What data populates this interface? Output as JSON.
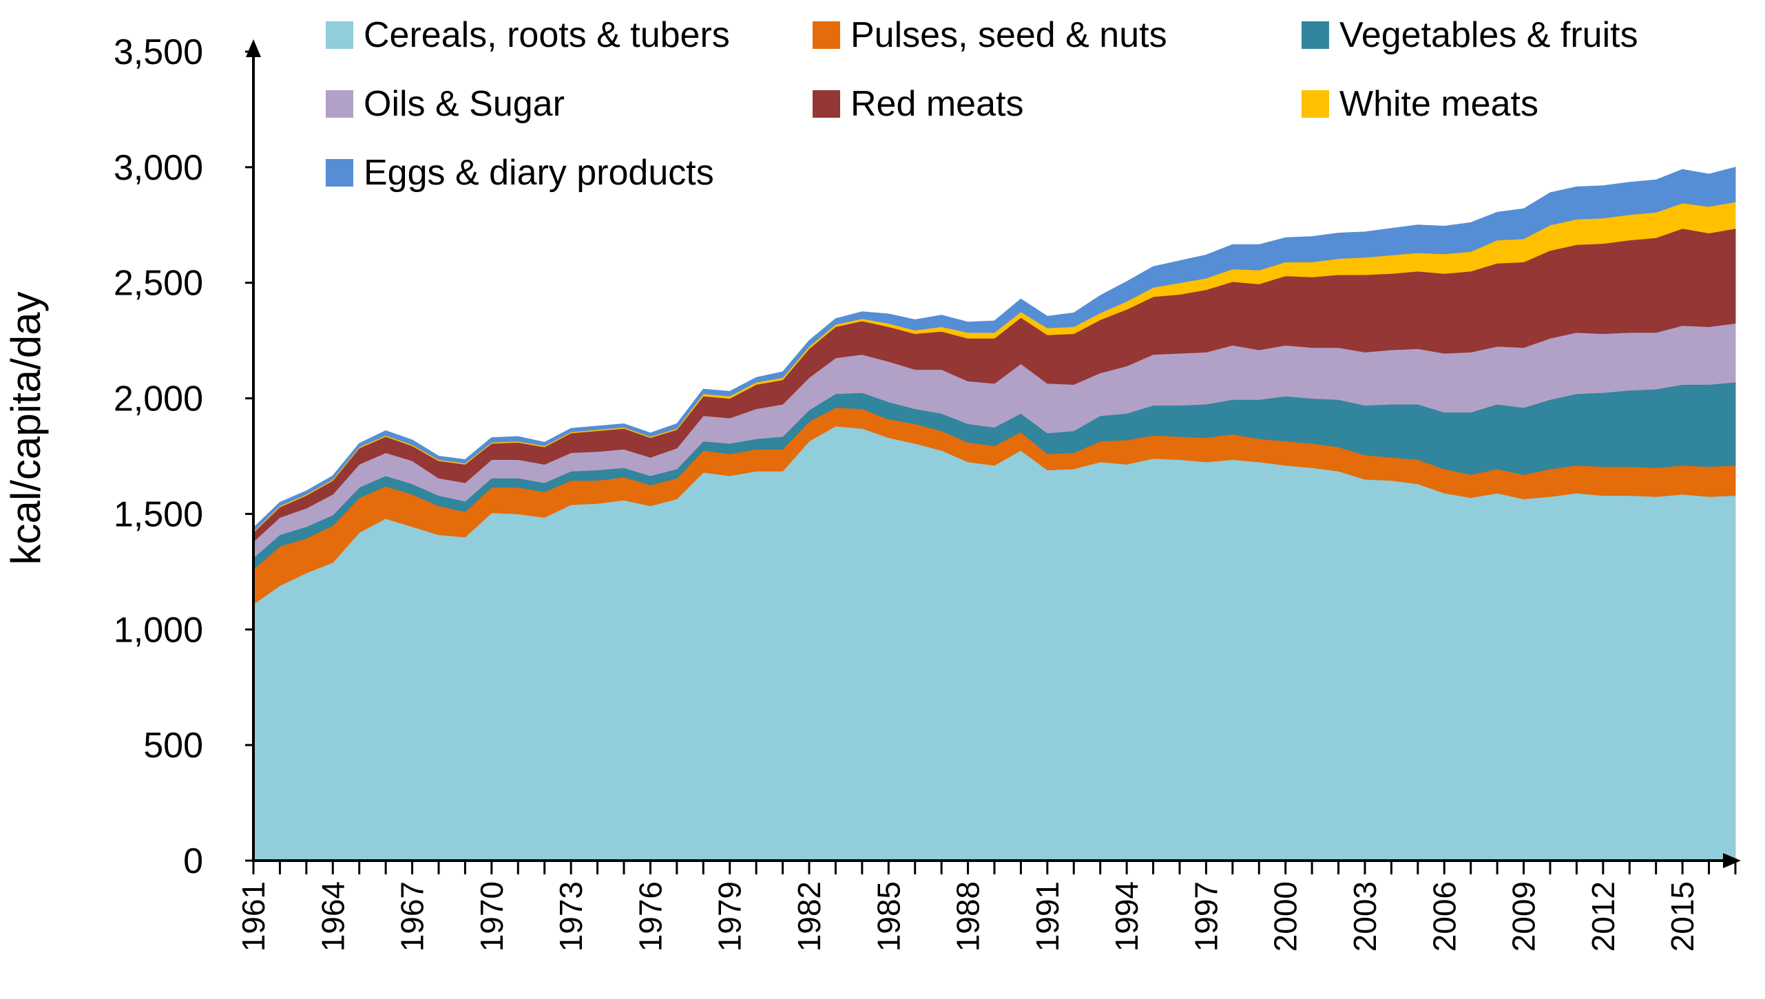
{
  "chart_data": {
    "type": "area",
    "stacked": true,
    "title": "",
    "xlabel": "",
    "ylabel": "kcal/capita/day",
    "ylim": [
      0,
      3500
    ],
    "yticks": [
      0,
      500,
      1000,
      1500,
      2000,
      2500,
      3000,
      3500
    ],
    "ytick_labels": [
      "0",
      "500",
      "1,000",
      "1,500",
      "2,000",
      "2,500",
      "3,000",
      "3,500"
    ],
    "xtick_labels": [
      "1961",
      "1964",
      "1967",
      "1970",
      "1973",
      "1976",
      "1979",
      "1982",
      "1985",
      "1988",
      "1991",
      "1994",
      "1997",
      "2000",
      "2003",
      "2006",
      "2009",
      "2012",
      "2015"
    ],
    "legend_position": "top",
    "x": [
      1961,
      1962,
      1963,
      1964,
      1965,
      1966,
      1967,
      1968,
      1969,
      1970,
      1971,
      1972,
      1973,
      1974,
      1975,
      1976,
      1977,
      1978,
      1979,
      1980,
      1981,
      1982,
      1983,
      1984,
      1985,
      1986,
      1987,
      1988,
      1989,
      1990,
      1991,
      1992,
      1993,
      1994,
      1995,
      1996,
      1997,
      1998,
      1999,
      2000,
      2001,
      2002,
      2003,
      2004,
      2005,
      2006,
      2007,
      2008,
      2009,
      2010,
      2011,
      2012,
      2013,
      2014,
      2015,
      2016,
      2017
    ],
    "series": [
      {
        "name": "Cereals, roots & tubers",
        "color": "#92CDDC",
        "values": [
          1110,
          1190,
          1245,
          1290,
          1420,
          1480,
          1445,
          1410,
          1400,
          1505,
          1500,
          1485,
          1540,
          1545,
          1560,
          1535,
          1565,
          1680,
          1665,
          1685,
          1685,
          1815,
          1880,
          1870,
          1830,
          1805,
          1775,
          1725,
          1710,
          1775,
          1690,
          1695,
          1725,
          1715,
          1740,
          1735,
          1725,
          1735,
          1725,
          1710,
          1700,
          1685,
          1650,
          1645,
          1630,
          1590,
          1570,
          1590,
          1565,
          1575,
          1590,
          1580,
          1580,
          1575,
          1585,
          1575,
          1580
        ]
      },
      {
        "name": "Pulses, seed & nuts",
        "color": "#E46C0A",
        "values": [
          150,
          170,
          150,
          160,
          150,
          140,
          140,
          125,
          110,
          110,
          115,
          110,
          105,
          100,
          100,
          90,
          90,
          95,
          95,
          95,
          95,
          85,
          80,
          85,
          80,
          85,
          85,
          85,
          85,
          80,
          70,
          70,
          90,
          105,
          100,
          100,
          105,
          110,
          100,
          105,
          105,
          105,
          105,
          100,
          105,
          105,
          100,
          105,
          105,
          120,
          120,
          125,
          125,
          125,
          125,
          130,
          130
        ]
      },
      {
        "name": "Vegetables & fruits",
        "color": "#31859C",
        "values": [
          50,
          50,
          50,
          45,
          45,
          45,
          45,
          45,
          45,
          40,
          40,
          40,
          40,
          45,
          40,
          40,
          40,
          40,
          45,
          45,
          55,
          50,
          60,
          70,
          75,
          65,
          75,
          80,
          80,
          80,
          90,
          95,
          110,
          115,
          130,
          135,
          145,
          150,
          170,
          195,
          195,
          205,
          215,
          230,
          240,
          245,
          270,
          280,
          290,
          300,
          310,
          320,
          330,
          340,
          350,
          355,
          360
        ]
      },
      {
        "name": "Oils & Sugar",
        "color": "#B2A1C7",
        "values": [
          70,
          75,
          80,
          90,
          100,
          100,
          100,
          75,
          80,
          80,
          80,
          80,
          80,
          80,
          80,
          80,
          90,
          110,
          110,
          130,
          140,
          140,
          155,
          165,
          175,
          170,
          190,
          185,
          190,
          215,
          215,
          200,
          185,
          205,
          220,
          225,
          225,
          235,
          215,
          220,
          220,
          225,
          230,
          235,
          240,
          255,
          260,
          250,
          260,
          265,
          265,
          255,
          250,
          245,
          255,
          250,
          255
        ]
      },
      {
        "name": "Red meats",
        "color": "#953735",
        "values": [
          40,
          45,
          55,
          60,
          70,
          70,
          65,
          75,
          80,
          70,
          75,
          75,
          85,
          90,
          90,
          85,
          80,
          85,
          85,
          105,
          105,
          125,
          135,
          145,
          150,
          155,
          165,
          185,
          195,
          200,
          210,
          220,
          230,
          245,
          250,
          255,
          270,
          275,
          285,
          300,
          305,
          315,
          335,
          330,
          335,
          345,
          350,
          360,
          370,
          380,
          380,
          390,
          400,
          410,
          420,
          405,
          410
        ]
      },
      {
        "name": "White meats",
        "color": "#FFC000",
        "values": [
          5,
          5,
          5,
          5,
          5,
          5,
          5,
          5,
          5,
          5,
          5,
          5,
          5,
          5,
          5,
          5,
          5,
          10,
          10,
          10,
          10,
          10,
          10,
          10,
          15,
          15,
          20,
          25,
          25,
          25,
          30,
          30,
          30,
          35,
          40,
          50,
          50,
          55,
          60,
          60,
          65,
          70,
          75,
          80,
          80,
          85,
          85,
          100,
          100,
          110,
          110,
          110,
          110,
          110,
          110,
          115,
          115
        ]
      },
      {
        "name": "Eggs & diary products",
        "color": "#558ED5",
        "values": [
          15,
          15,
          15,
          15,
          15,
          20,
          20,
          15,
          15,
          20,
          20,
          15,
          15,
          15,
          15,
          15,
          20,
          20,
          20,
          20,
          25,
          25,
          25,
          30,
          40,
          45,
          50,
          45,
          50,
          55,
          50,
          60,
          75,
          85,
          90,
          95,
          100,
          105,
          110,
          105,
          110,
          110,
          110,
          115,
          120,
          120,
          125,
          120,
          130,
          140,
          140,
          140,
          140,
          140,
          145,
          140,
          150
        ]
      }
    ]
  }
}
